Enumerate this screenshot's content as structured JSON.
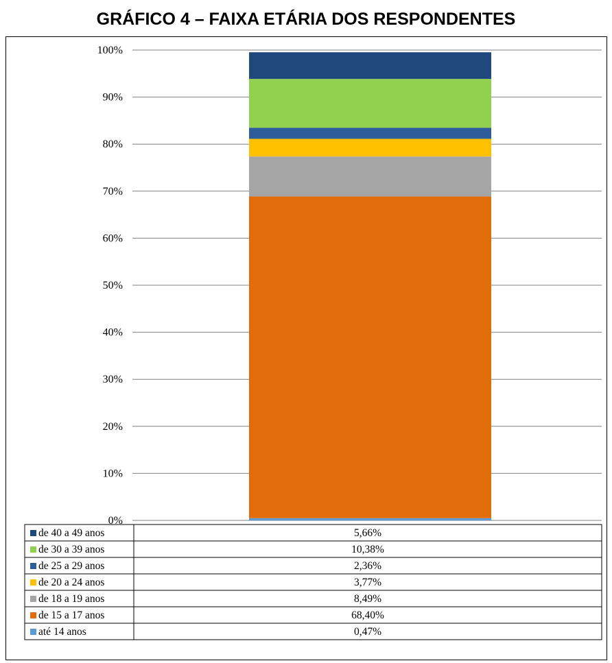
{
  "title": "GRÁFICO 4 – FAIXA ETÁRIA DOS RESPONDENTES",
  "chart_data": {
    "type": "bar",
    "stacked": true,
    "categories": [
      ""
    ],
    "y_ticks": [
      "0%",
      "10%",
      "20%",
      "30%",
      "40%",
      "50%",
      "60%",
      "70%",
      "80%",
      "90%",
      "100%"
    ],
    "ylim": [
      0,
      100
    ],
    "grid": true,
    "legend": "data-table",
    "series": [
      {
        "name": "até 14 anos",
        "value": 0.47,
        "label": "0,47%",
        "color": "#5b9bd5"
      },
      {
        "name": "de 15 a 17 anos",
        "value": 68.4,
        "label": "68,40%",
        "color": "#e36c0a"
      },
      {
        "name": "de 18 a 19 anos",
        "value": 8.49,
        "label": "8,49%",
        "color": "#a5a5a5"
      },
      {
        "name": "de 20 a 24 anos",
        "value": 3.77,
        "label": "3,77%",
        "color": "#ffc000"
      },
      {
        "name": "de 25 a 29 anos",
        "value": 2.36,
        "label": "2,36%",
        "color": "#2e5b9a"
      },
      {
        "name": "de 30 a 39 anos",
        "value": 10.38,
        "label": "10,38%",
        "color": "#92d050"
      },
      {
        "name": "de 40 a 49 anos",
        "value": 5.66,
        "label": "5,66%",
        "color": "#1f497d"
      }
    ]
  }
}
